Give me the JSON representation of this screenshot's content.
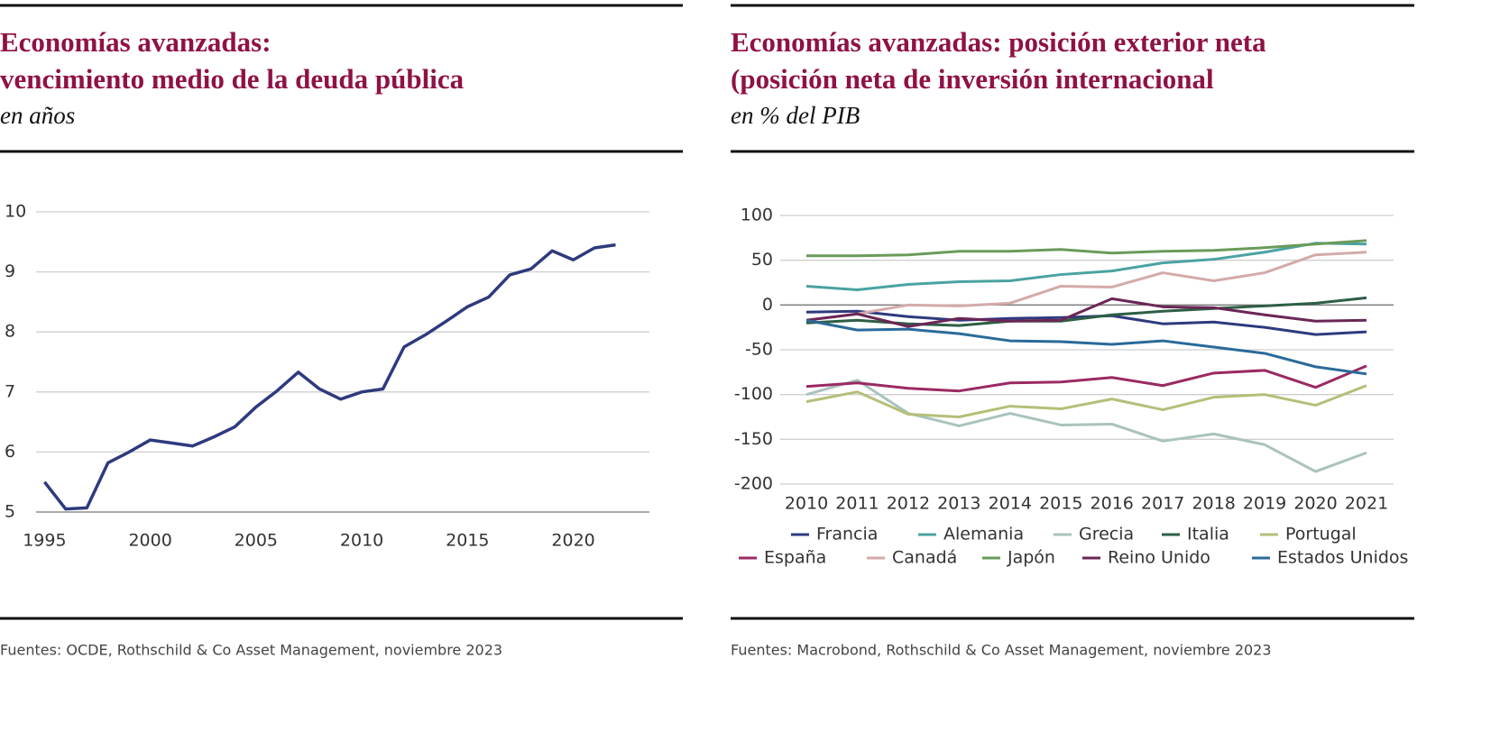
{
  "chart_data": [
    {
      "type": "line",
      "title": [
        "Economías avanzadas:",
        "vencimiento medio de la deuda pública"
      ],
      "subtitle": "en años",
      "source": "Fuentes: OCDE, Rothschild & Co Asset Management, noviembre 2023",
      "x": [
        1995,
        1996,
        1997,
        1998,
        1999,
        2000,
        2001,
        2002,
        2003,
        2004,
        2005,
        2006,
        2007,
        2008,
        2009,
        2010,
        2011,
        2012,
        2013,
        2014,
        2015,
        2016,
        2017,
        2018,
        2019,
        2020,
        2021,
        2022
      ],
      "values": [
        5.5,
        5.05,
        5.07,
        5.82,
        6.0,
        6.2,
        6.15,
        6.1,
        6.25,
        6.42,
        6.75,
        7.02,
        7.33,
        7.05,
        6.88,
        7.0,
        7.05,
        7.75,
        7.95,
        8.18,
        8.42,
        8.58,
        8.95,
        9.05,
        9.35,
        9.2,
        9.4,
        9.45
      ],
      "color": "#2e3a7e",
      "xlim": [
        1994.6,
        2023.6
      ],
      "xticks": [
        1995,
        2000,
        2005,
        2010,
        2015,
        2020
      ],
      "ylim": [
        5,
        10
      ],
      "yticks": [
        5,
        6,
        7,
        8,
        9,
        10
      ],
      "grid": true
    },
    {
      "type": "line",
      "title": [
        "Economías avanzadas: posición exterior neta",
        "(posición neta de inversión internacional"
      ],
      "subtitle": "en % del PIB",
      "source": "Fuentes: Macrobond, Rothschild & Co Asset Management, noviembre 2023",
      "categories": [
        "2010",
        "2011",
        "2012",
        "2013",
        "2014",
        "2015",
        "2016",
        "2017",
        "2018",
        "2019",
        "2020",
        "2021"
      ],
      "series": [
        {
          "name": "Francia",
          "color": "#2e3a7e",
          "values": [
            -8,
            -7,
            -13,
            -17,
            -15,
            -14,
            -12,
            -21,
            -19,
            -25,
            -33,
            -30
          ]
        },
        {
          "name": "Alemania",
          "color": "#4aa3a2",
          "values": [
            21,
            17,
            23,
            26,
            27,
            34,
            38,
            47,
            51,
            59,
            69,
            68
          ]
        },
        {
          "name": "Grecia",
          "color": "#a9c3bd",
          "values": [
            -100,
            -84,
            -121,
            -135,
            -121,
            -134,
            -133,
            -152,
            -144,
            -156,
            -186,
            -165
          ]
        },
        {
          "name": "Italia",
          "color": "#2e5e45",
          "values": [
            -20,
            -17,
            -21,
            -23,
            -18,
            -18,
            -11,
            -7,
            -4,
            -1,
            2,
            8
          ]
        },
        {
          "name": "Portugal",
          "color": "#b4bf78",
          "values": [
            -108,
            -97,
            -122,
            -125,
            -113,
            -116,
            -105,
            -117,
            -103,
            -100,
            -112,
            -90
          ]
        },
        {
          "name": "España",
          "color": "#9a2a63",
          "values": [
            -91,
            -87,
            -93,
            -96,
            -87,
            -86,
            -81,
            -90,
            -76,
            -73,
            -92,
            -68
          ]
        },
        {
          "name": "Canadá",
          "color": "#d3aaaa",
          "values": [
            -17,
            -10,
            0,
            -1,
            2,
            21,
            20,
            36,
            27,
            36,
            56,
            59
          ]
        },
        {
          "name": "Japón",
          "color": "#6a9b5a",
          "values": [
            55,
            55,
            56,
            60,
            60,
            62,
            58,
            60,
            61,
            64,
            68,
            72
          ]
        },
        {
          "name": "Reino Unido",
          "color": "#6b2655",
          "values": [
            -17,
            -10,
            -24,
            -15,
            -18,
            -17,
            7,
            -2,
            -3,
            -11,
            -18,
            -17
          ]
        },
        {
          "name": "Estados Unidos",
          "color": "#2a6a99",
          "values": [
            -17,
            -28,
            -27,
            -32,
            -40,
            -41,
            -44,
            -40,
            -47,
            -54,
            -69,
            -77
          ]
        }
      ],
      "ylim": [
        -200,
        100
      ],
      "yticks": [
        100,
        50,
        0,
        -50,
        -100,
        -150,
        -200
      ],
      "grid": true
    }
  ]
}
